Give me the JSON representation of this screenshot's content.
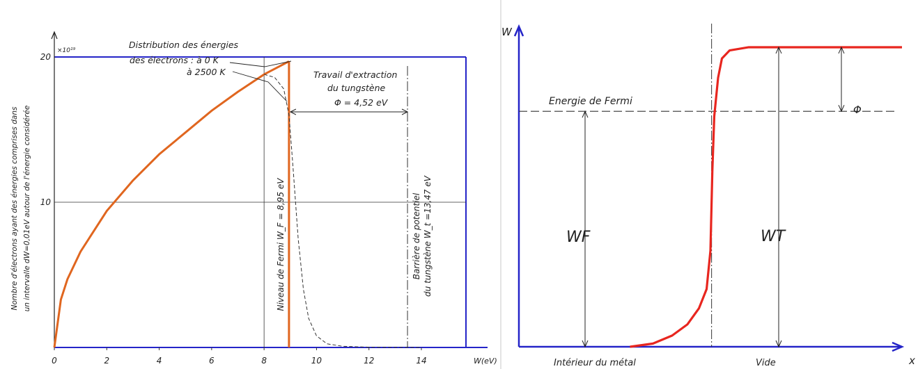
{
  "chart_data": [
    {
      "type": "line",
      "ylabel_line1": "Nombre d'électrons ayant des énergies comprises dans",
      "ylabel_line2": "un intervalle dW=0,01eV autour de l'énergie considérée",
      "y_multiplier": "×10¹⁹",
      "xlim": [
        0,
        15.7
      ],
      "ylim": [
        0,
        20
      ],
      "x_ticks": [
        0,
        2,
        4,
        6,
        8,
        10,
        12,
        14
      ],
      "x_tick_labels": [
        "0",
        "2",
        "4",
        "6",
        "8",
        "10",
        "12",
        "14"
      ],
      "y_ticks": [
        10,
        20
      ],
      "y_tick_labels": [
        "10",
        "20"
      ],
      "x_axis_label": "W(eV)",
      "series": [
        {
          "line": "solid",
          "color": "#e0661f",
          "x": [
            0,
            0.25,
            0.5,
            1,
            2,
            3,
            4,
            5,
            6,
            7,
            8,
            8.95
          ],
          "y": [
            0,
            3.3,
            4.7,
            6.6,
            9.4,
            11.5,
            13.3,
            14.8,
            16.3,
            17.6,
            18.8,
            19.7
          ]
        },
        {
          "line": "dash",
          "x": [
            8.0,
            8.4,
            8.75,
            8.95,
            9.1,
            9.3,
            9.5,
            9.7,
            10.0,
            10.4,
            11.0,
            12.0,
            14.0
          ],
          "y": [
            18.8,
            18.6,
            17.8,
            16.0,
            12.5,
            7.5,
            4.0,
            2.0,
            0.8,
            0.25,
            0.08,
            0.02,
            0
          ]
        }
      ],
      "annotations": {
        "distribution_line1": "Distribution des énergies",
        "distribution_line2": "des électrons : à 0 K",
        "temp_2500": "à 2500 K",
        "extraction_line1": "Travail d'extraction",
        "extraction_line2": "du tungstène",
        "extraction_value": "Φ = 4,52 eV",
        "fermi_level": "Niveau de Fermi W_F = 8,95 eV",
        "barrier_line1": "Barrière de potentiel",
        "barrier_line2": "du tungstène W_t =13,47 eV"
      },
      "fermi_x": 8.95,
      "barrier_x": 13.47,
      "grid_x": [
        8
      ],
      "grid_y": [
        10
      ]
    },
    {
      "type": "line",
      "y_axis_label": "W",
      "x_axis_label": "x",
      "region_left": "Intérieur du métal",
      "region_right": "Vide",
      "fermi_label": "Energie de Fermi",
      "wf_label": "WF",
      "wt_label": "WT",
      "phi_label": "Φ",
      "series": [
        {
          "name": "",
          "color": "#e8261f",
          "x": [
            0.29,
            0.35,
            0.4,
            0.44,
            0.47,
            0.49,
            0.5,
            0.505,
            0.51,
            0.52,
            0.53,
            0.55,
            0.6,
            0.7,
            0.8,
            1.0
          ],
          "y": [
            0,
            0.01,
            0.035,
            0.07,
            0.12,
            0.18,
            0.3,
            0.55,
            0.72,
            0.84,
            0.9,
            0.925,
            0.935,
            0.935,
            0.935,
            0.935
          ]
        }
      ],
      "fermi_level": 0.735,
      "vacuum_level": 0.935,
      "interface_x": 0.503
    }
  ]
}
